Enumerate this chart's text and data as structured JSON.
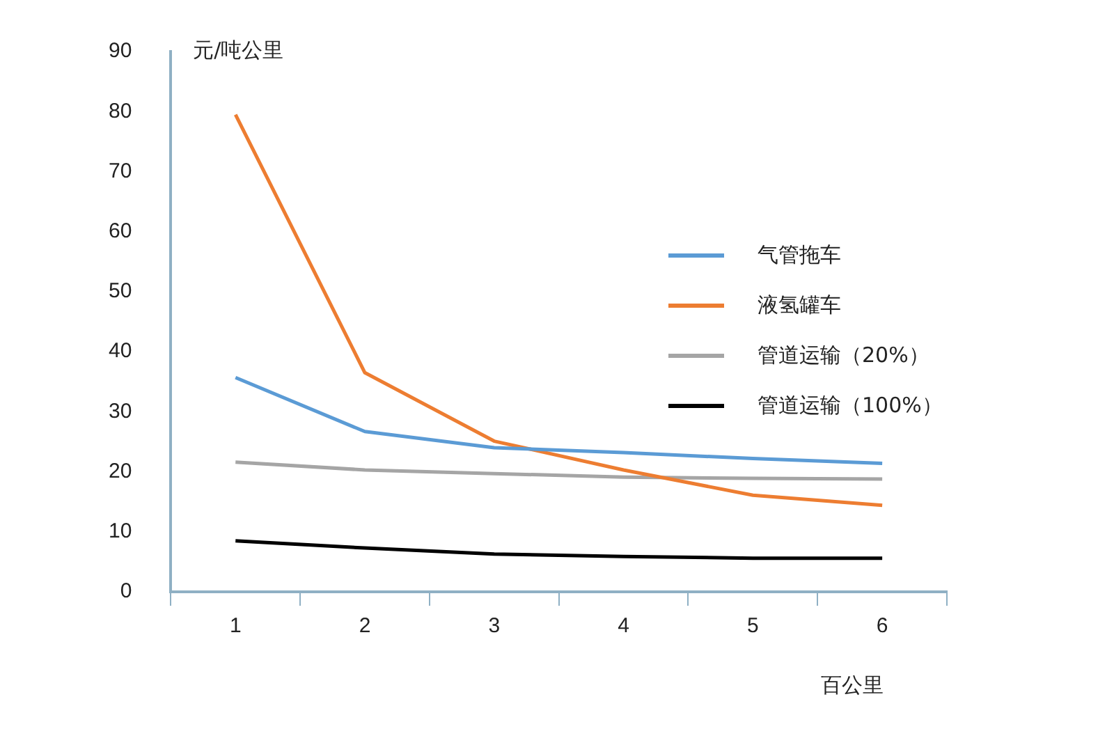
{
  "chart_data": {
    "type": "line",
    "ylabel": "元/吨公里",
    "xlabel": "百公里",
    "categories": [
      "1",
      "2",
      "3",
      "4",
      "5",
      "6"
    ],
    "ylim": [
      0,
      90
    ],
    "yticks": [
      0,
      10,
      20,
      30,
      40,
      50,
      60,
      70,
      80,
      90
    ],
    "grid": false,
    "legend": "right",
    "marker": "none",
    "line_style": "solid",
    "series": [
      {
        "name": "气管拖车",
        "color": "#5b9bd5",
        "values": [
          35.7,
          26.7,
          24,
          23.2,
          22.2,
          21.4
        ]
      },
      {
        "name": "液氢罐车",
        "color": "#ed7d31",
        "values": [
          79.5,
          36.5,
          25.1,
          20.3,
          16.1,
          14.4
        ]
      },
      {
        "name": "管道运输（20%）",
        "color": "#a5a5a5",
        "values": [
          21.6,
          20.3,
          19.7,
          19.1,
          18.9,
          18.8
        ]
      },
      {
        "name": "管道运输（100%）",
        "color": "#000000",
        "values": [
          8.5,
          7.3,
          6.3,
          5.9,
          5.6,
          5.6
        ]
      }
    ]
  }
}
